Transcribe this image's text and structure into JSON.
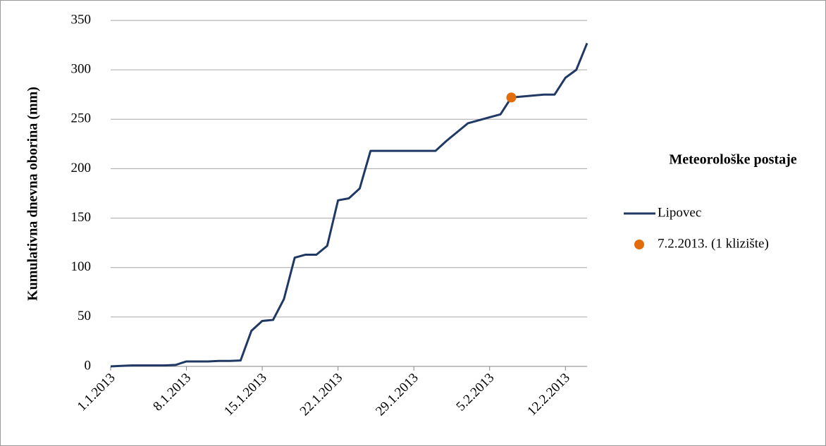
{
  "chart_data": {
    "type": "line",
    "y_label": "Kumulativna dnevna oborina (mm)",
    "legend_title": "Meteorološke postaje",
    "x": [
      "1.1.2013",
      "2.1.2013",
      "3.1.2013",
      "4.1.2013",
      "5.1.2013",
      "6.1.2013",
      "7.1.2013",
      "8.1.2013",
      "9.1.2013",
      "10.1.2013",
      "11.1.2013",
      "12.1.2013",
      "13.1.2013",
      "14.1.2013",
      "15.1.2013",
      "16.1.2013",
      "17.1.2013",
      "18.1.2013",
      "19.1.2013",
      "20.1.2013",
      "21.1.2013",
      "22.1.2013",
      "23.1.2013",
      "24.1.2013",
      "25.1.2013",
      "26.1.2013",
      "27.1.2013",
      "28.1.2013",
      "29.1.2013",
      "30.1.2013",
      "31.1.2013",
      "1.2.2013",
      "2.2.2013",
      "3.2.2013",
      "4.2.2013",
      "5.2.2013",
      "6.2.2013",
      "7.2.2013",
      "8.2.2013",
      "9.2.2013",
      "10.2.2013",
      "11.2.2013",
      "12.2.2013",
      "13.2.2013",
      "14.2.2013"
    ],
    "series": [
      {
        "name": "Lipovec",
        "color": "#1f3864",
        "values": [
          0,
          0.5,
          1,
          1,
          1,
          1,
          1.5,
          5,
          5,
          5,
          5.5,
          5.5,
          6,
          36,
          46,
          47,
          68,
          110,
          113,
          113,
          122,
          168,
          170,
          180,
          218,
          218,
          218,
          218,
          218,
          218,
          218,
          228,
          237,
          246,
          249,
          252,
          255,
          272,
          273,
          274,
          275,
          275,
          292,
          300,
          327
        ]
      },
      {
        "name": "7.2.2013. (1 klizište)",
        "color": "#e36c0a",
        "type": "scatter",
        "x": [
          "7.2.2013"
        ],
        "values": [
          272
        ]
      }
    ],
    "xlim": [
      "1.1.2013",
      "14.2.2013"
    ],
    "xticks": [
      "1.1.2013",
      "8.1.2013",
      "15.1.2013",
      "22.1.2013",
      "29.1.2013",
      "5.2.2013",
      "12.2.2013"
    ],
    "ylim": [
      0,
      350
    ],
    "yticks": [
      0,
      50,
      100,
      150,
      200,
      250,
      300,
      350
    ],
    "grid": true
  }
}
